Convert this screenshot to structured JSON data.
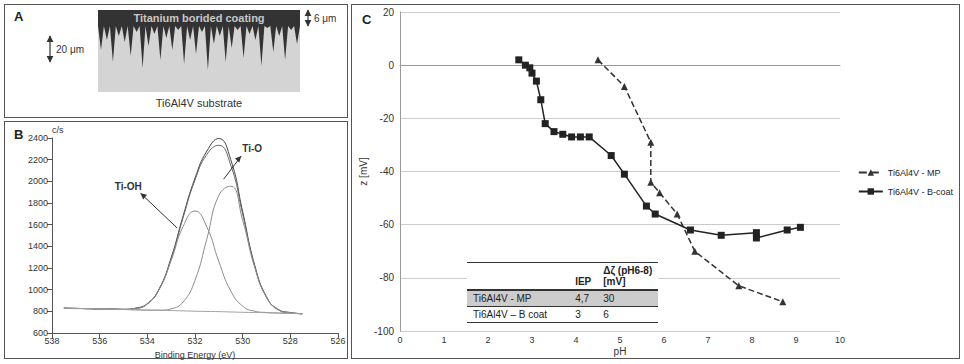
{
  "diagram": {
    "label": "A",
    "coating": "Titanium borided coating",
    "substrate": "Ti6Al4V substrate",
    "left_dimension": "20 μm",
    "right_dimension": "6 μm"
  },
  "chart_data": [
    {
      "type": "line",
      "title": "B",
      "xlabel": "Binding Energy (eV)",
      "ylabel": "c/s",
      "x": [
        537.5,
        537,
        536.5,
        536,
        535.5,
        535,
        534.5,
        534,
        533.5,
        533,
        532.5,
        532,
        531.5,
        531,
        530.5,
        530,
        529.5,
        529,
        528.5,
        528,
        527.5
      ],
      "xlim": [
        538,
        526
      ],
      "xticks": [
        538,
        536,
        534,
        532,
        530,
        528,
        526
      ],
      "ylim": [
        600,
        2400
      ],
      "yticks": [
        600,
        800,
        1000,
        1200,
        1400,
        1600,
        1800,
        2000,
        2200,
        2400
      ],
      "grid": false,
      "series": [
        {
          "color": "#444444",
          "line_style": "solid",
          "values": [
            832,
            826,
            827,
            820,
            823,
            818,
            830,
            872,
            1010,
            1295,
            1680,
            2030,
            2280,
            2395,
            2200,
            1720,
            1230,
            935,
            815,
            790,
            776
          ]
        },
        {
          "color": "#666666",
          "line_style": "solid",
          "values": [
            830,
            828,
            825,
            822,
            820,
            820,
            827,
            869,
            1006,
            1286,
            1665,
            2012,
            2249,
            2333,
            2149,
            1697,
            1222,
            931,
            817,
            787,
            780
          ]
        },
        {
          "color": "#8c8c8c",
          "line_style": "solid",
          "values": [
            830,
            828,
            825,
            822,
            820,
            820,
            827,
            869,
            1004,
            1270,
            1583,
            1727,
            1578,
            1260,
            989,
            849,
            802,
            790,
            785,
            782,
            780
          ]
        },
        {
          "color": "#8c8c8c",
          "line_style": "solid",
          "values": [
            830,
            828,
            825,
            822,
            820,
            818,
            815,
            812,
            812,
            824,
            887,
            1087,
            1471,
            1871,
            1955,
            1640,
            1210,
            929,
            817,
            787,
            780
          ]
        },
        {
          "color": "#a0a0a0",
          "line_style": "solid",
          "values": [
            830,
            828,
            825,
            822,
            820,
            818,
            815,
            812,
            810,
            808,
            805,
            802,
            800,
            798,
            795,
            792,
            790,
            788,
            785,
            782,
            780
          ]
        }
      ],
      "annotations": [
        {
          "text": "Ti-OH",
          "x": 534.8,
          "y": 1950,
          "arrow_from": [
            532.75,
            1570
          ]
        },
        {
          "text": "Ti-O",
          "x": 529.6,
          "y": 2300,
          "arrow_from": [
            530.8,
            2020
          ]
        }
      ]
    },
    {
      "type": "line",
      "title": "C",
      "xlabel": "pH",
      "ylabel": "z [mV]",
      "xlim": [
        0,
        10
      ],
      "xticks": [
        0,
        1,
        2,
        3,
        4,
        5,
        6,
        7,
        8,
        9,
        10
      ],
      "ylim": [
        -100,
        20
      ],
      "yticks": [
        -100,
        -80,
        -60,
        -40,
        -20,
        0,
        20
      ],
      "grid": true,
      "legend": "right",
      "series": [
        {
          "name": "Ti6Al4V - MP",
          "color": "#333333",
          "marker": "triangle",
          "line_style": "dashed",
          "x": [
            4.5,
            5.1,
            5.7,
            5.7,
            5.9,
            6.3,
            6.7,
            7.7,
            8.7
          ],
          "values": [
            2,
            -8,
            -29,
            -44,
            -48,
            -56,
            -70,
            -83,
            -89
          ]
        },
        {
          "name": "Ti6Al4V - B-coat",
          "color": "#222222",
          "marker": "square",
          "line_style": "solid",
          "x": [
            2.7,
            2.85,
            2.95,
            3.0,
            3.1,
            3.2,
            3.3,
            3.5,
            3.7,
            3.9,
            4.1,
            4.3,
            4.8,
            5.1,
            5.6,
            5.8,
            6.6,
            7.3,
            8.1,
            8.1,
            8.8,
            9.1
          ],
          "values": [
            2,
            0,
            -1,
            -3,
            -6,
            -13,
            -22,
            -25,
            -26,
            -27,
            -27,
            -27,
            -34,
            -41,
            -53,
            -56,
            -62,
            -64,
            -63,
            -65,
            -62,
            -61
          ]
        }
      ]
    }
  ],
  "table": {
    "columns": [
      [
        "IEP"
      ],
      [
        "Δζ (pH6-8)",
        "[mV]"
      ]
    ],
    "rows": [
      {
        "label": "Ti6Al4V - MP",
        "cells": [
          "4,7",
          "30"
        ]
      },
      {
        "label": "Ti6Al4V – B coat",
        "cells": [
          "3",
          "6"
        ]
      }
    ]
  }
}
